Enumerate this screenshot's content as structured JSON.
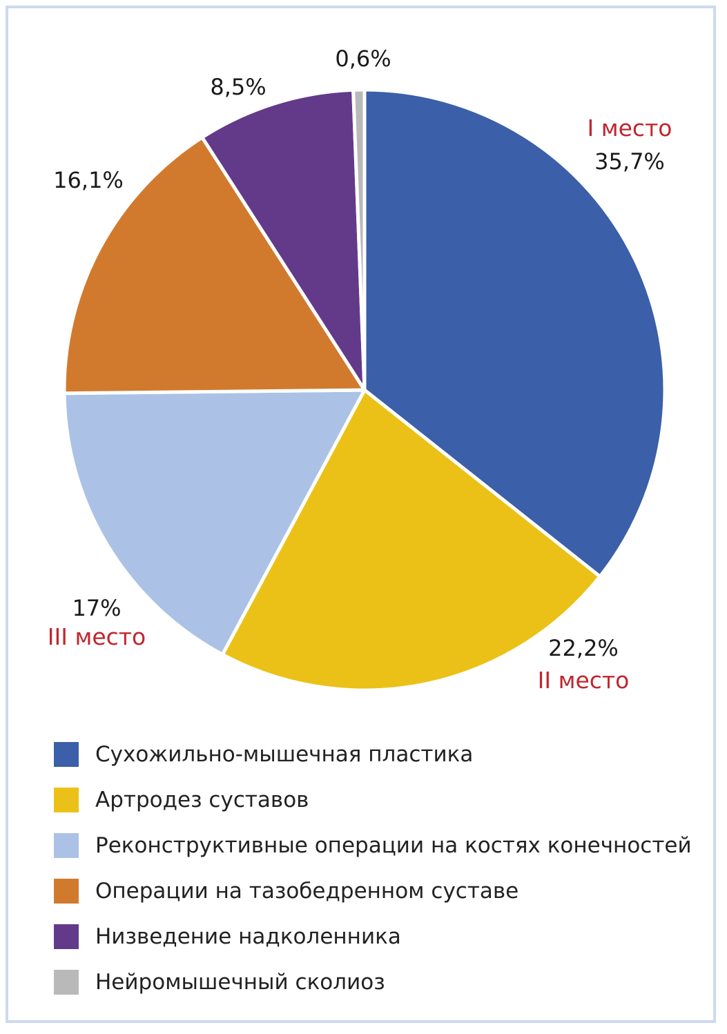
{
  "chart_data": {
    "type": "pie",
    "categories": [
      "Сухожильно-мышечная пластика",
      "Артродез суставов",
      "Реконструктивные операции на костях конечностей",
      "Операции на тазобедренном суставе",
      "Низведение надколенника",
      "Нейромышечный сколиоз"
    ],
    "values": [
      35.7,
      22.2,
      17,
      16.1,
      8.5,
      0.6
    ],
    "value_labels": [
      "35,7%",
      "22,2%",
      "17%",
      "16,1%",
      "8,5%",
      "0,6%"
    ],
    "rank_labels": [
      "I место",
      "II место",
      "III место",
      "",
      "",
      ""
    ],
    "colors": [
      "#3b5fa8",
      "#ebc117",
      "#abc2e6",
      "#d17a2e",
      "#633a8a",
      "#b9b9b9"
    ],
    "legend_position": "bottom-left",
    "title": ""
  }
}
